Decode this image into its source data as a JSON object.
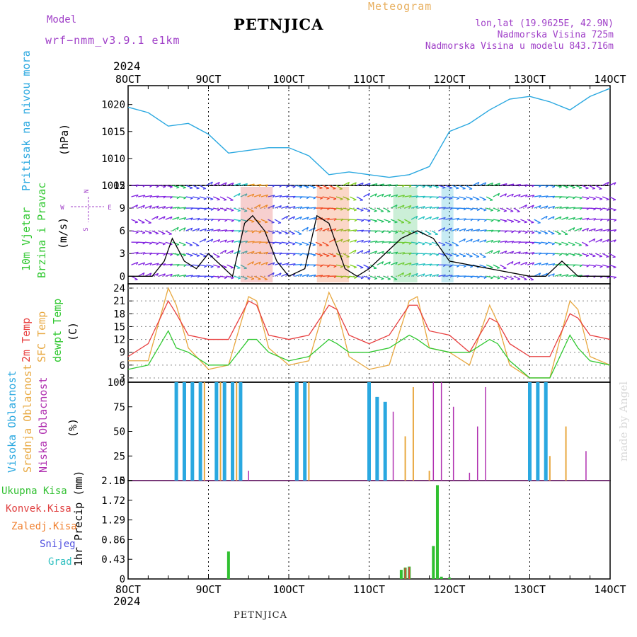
{
  "header": {
    "model_label": "Model",
    "model_value": "wrf−nmm_v3.9.1  e1km",
    "title": "PETNJICA",
    "meteogram_label": "Meteogram",
    "location": "lon,lat (19.9625E, 42.9N)",
    "altitude": "Nadmorska Visina 725m",
    "model_altitude": "Nadmorska Visina u modelu 843.716m",
    "year": "2024"
  },
  "footer": {
    "station": "PETNJICA",
    "made_by": "made by Angel"
  },
  "panels": {
    "pressure": {
      "label": "Pritisak na nivou mora",
      "unit": "(hPa)",
      "ticks": [
        "1005",
        "1010",
        "1015",
        "1020"
      ]
    },
    "wind": {
      "label1": "10m Vjetar",
      "label2": "Brzina i Pravac",
      "unit": "(m/s)",
      "ticks": [
        "0",
        "3",
        "6",
        "9",
        "12"
      ],
      "compass": [
        "N",
        "S",
        "W",
        "E"
      ]
    },
    "temp": {
      "label1": "2m Temp",
      "label2": "SFC Temp",
      "label3": "dewpt Temp",
      "unit": "(C)",
      "ticks": [
        "3",
        "6",
        "9",
        "12",
        "15",
        "18",
        "21",
        "24"
      ]
    },
    "cloud": {
      "label1": "Visoka Oblacnost",
      "label2": "Srednja Oblacnost",
      "label3": "Niska Oblacnost",
      "unit": "(%)",
      "ticks": [
        "0",
        "25",
        "50",
        "75",
        "100"
      ]
    },
    "precip": {
      "unit": "1hr Precip (mm)",
      "ticks": [
        "0",
        "0.43",
        "0.86",
        "1.29",
        "1.72",
        "2.15"
      ],
      "legend": [
        "Ukupna Kisa",
        "Konvek.Kisa",
        "Zaledj.Kisa",
        "Snijeg",
        "Grad"
      ]
    }
  },
  "colors": {
    "pressure": "#2aa8e0",
    "t2m": "#e84040",
    "sfc": "#e8a840",
    "dewpt": "#30c830",
    "high_cloud": "#2aa8e0",
    "mid_cloud": "#e8a840",
    "low_cloud": "#b030b0",
    "total_rain": "#30c030",
    "conv_rain": "#e04040",
    "frz_rain": "#f08030",
    "snow": "#5050e0",
    "hail": "#30c0c0",
    "label_purple": "#a040c8",
    "wind_speed": "#000000",
    "gust": "#e04040"
  },
  "chart_data": {
    "type": "line",
    "x_ticks": [
      "8OCT",
      "9OCT",
      "10OCT",
      "11OCT",
      "12OCT",
      "13OCT",
      "14OCT"
    ],
    "x_range_days": [
      "2024-10-08",
      "2024-10-14"
    ],
    "pressure_hpa": {
      "ylim": [
        1005,
        1023.5
      ],
      "x_days": [
        8.0,
        8.25,
        8.5,
        8.75,
        9.0,
        9.25,
        9.5,
        9.75,
        10.0,
        10.25,
        10.5,
        10.75,
        11.0,
        11.25,
        11.5,
        11.75,
        12.0,
        12.25,
        12.5,
        12.75,
        13.0,
        13.25,
        13.5,
        13.75,
        14.0
      ],
      "values": [
        1019.5,
        1018.5,
        1016,
        1016.5,
        1014.5,
        1011,
        1011.5,
        1012,
        1012,
        1010.5,
        1007,
        1007.5,
        1007,
        1006.5,
        1007,
        1008.5,
        1015,
        1016.5,
        1019,
        1021,
        1021.5,
        1020.5,
        1019,
        1021.5,
        1023
      ]
    },
    "wind_speed_ms": {
      "ylim": [
        -1,
        12
      ],
      "x_days": [
        8.0,
        8.3,
        8.45,
        8.55,
        8.7,
        8.85,
        9.0,
        9.2,
        9.3,
        9.45,
        9.55,
        9.7,
        9.85,
        10.0,
        10.2,
        10.35,
        10.5,
        10.7,
        10.85,
        11.0,
        11.2,
        11.4,
        11.6,
        11.8,
        12.0,
        13.0,
        13.2,
        13.4,
        13.6,
        14.0
      ],
      "values": [
        0,
        0,
        2,
        5,
        2,
        1,
        3,
        1,
        0,
        7,
        8,
        6,
        2,
        0,
        1,
        8,
        7,
        1,
        0,
        1,
        3,
        5,
        6,
        5,
        2,
        0,
        0,
        2,
        0,
        0
      ]
    },
    "temperature_c": {
      "ylim": [
        2,
        25
      ],
      "x_days": [
        8.0,
        8.25,
        8.5,
        8.6,
        8.75,
        9.0,
        9.25,
        9.5,
        9.6,
        9.75,
        10.0,
        10.25,
        10.5,
        10.6,
        10.75,
        11.0,
        11.25,
        11.5,
        11.6,
        11.75,
        12.0,
        12.25,
        12.5,
        12.6,
        12.75,
        13.0,
        13.25,
        13.5,
        13.6,
        13.75,
        14.0
      ],
      "t2m": [
        8,
        11,
        21,
        18,
        13,
        12,
        12,
        21,
        20,
        13,
        12,
        13,
        20,
        19,
        13,
        11,
        13,
        20,
        20,
        14,
        13,
        9,
        17,
        16,
        11,
        8,
        8,
        18,
        17,
        13,
        12
      ],
      "sfc": [
        7,
        7,
        24,
        20,
        10,
        5,
        6,
        22,
        21,
        10,
        6,
        7,
        23,
        19,
        8,
        5,
        6,
        21,
        22,
        10,
        9,
        6,
        20,
        16,
        6,
        3,
        3,
        21,
        19,
        8,
        6
      ],
      "dewpt": [
        5,
        6,
        14,
        10,
        9,
        6,
        6,
        12,
        12,
        9,
        7,
        8,
        12,
        11,
        9,
        9,
        10,
        13,
        12,
        10,
        9,
        9,
        12,
        11,
        7,
        3,
        3,
        13,
        10,
        7,
        6
      ]
    },
    "cloud_cover_pct": {
      "ylim": [
        0,
        100
      ],
      "high": [
        {
          "day": 8.6,
          "v": 100
        },
        {
          "day": 8.7,
          "v": 100
        },
        {
          "day": 8.8,
          "v": 100
        },
        {
          "day": 8.9,
          "v": 100
        },
        {
          "day": 9.1,
          "v": 100
        },
        {
          "day": 9.2,
          "v": 100
        },
        {
          "day": 9.3,
          "v": 100
        },
        {
          "day": 9.4,
          "v": 100
        },
        {
          "day": 10.1,
          "v": 100
        },
        {
          "day": 10.2,
          "v": 100
        },
        {
          "day": 11.0,
          "v": 100
        },
        {
          "day": 11.1,
          "v": 85
        },
        {
          "day": 11.2,
          "v": 80
        },
        {
          "day": 13.0,
          "v": 100
        },
        {
          "day": 13.1,
          "v": 100
        },
        {
          "day": 13.2,
          "v": 100
        }
      ],
      "mid": [
        {
          "day": 8.95,
          "v": 100
        },
        {
          "day": 9.15,
          "v": 100
        },
        {
          "day": 9.35,
          "v": 100
        },
        {
          "day": 10.25,
          "v": 100
        },
        {
          "day": 11.45,
          "v": 45
        },
        {
          "day": 11.55,
          "v": 95
        },
        {
          "day": 11.75,
          "v": 10
        },
        {
          "day": 13.45,
          "v": 55
        },
        {
          "day": 13.25,
          "v": 25
        }
      ],
      "low": [
        {
          "day": 9.5,
          "v": 10
        },
        {
          "day": 11.3,
          "v": 70
        },
        {
          "day": 11.8,
          "v": 100
        },
        {
          "day": 11.9,
          "v": 100
        },
        {
          "day": 12.05,
          "v": 75
        },
        {
          "day": 12.45,
          "v": 95
        },
        {
          "day": 12.35,
          "v": 55
        },
        {
          "day": 12.25,
          "v": 8
        },
        {
          "day": 13.7,
          "v": 30
        }
      ]
    },
    "precip_mm": {
      "ylim": [
        0,
        2.15
      ],
      "total": [
        {
          "day": 9.25,
          "v": 0.6
        },
        {
          "day": 11.4,
          "v": 0.2
        },
        {
          "day": 11.45,
          "v": 0.25
        },
        {
          "day": 11.5,
          "v": 0.27
        },
        {
          "day": 11.8,
          "v": 0.72
        },
        {
          "day": 11.85,
          "v": 2.05
        },
        {
          "day": 11.9,
          "v": 0.05
        },
        {
          "day": 12.0,
          "v": 0.03
        }
      ],
      "conv": [
        {
          "day": 11.45,
          "v": 0.24
        },
        {
          "day": 11.5,
          "v": 0.26
        }
      ]
    }
  }
}
